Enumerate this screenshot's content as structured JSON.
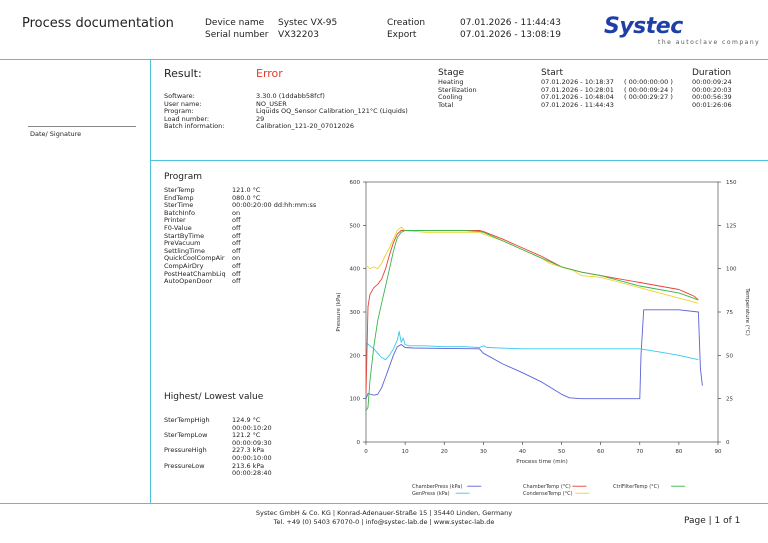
{
  "header": {
    "title": "Process documentation",
    "device_name_label": "Device name",
    "device_name": "Systec VX-95",
    "serial_label": "Serial number",
    "serial": "VX32203",
    "creation_label": "Creation",
    "creation": "07.01.2026 - 11:44:43",
    "export_label": "Export",
    "export": "07.01.2026 - 13:08:19",
    "logo_word": "Systec",
    "logo_sub": "the autoclave company"
  },
  "sidebar": {
    "date_signature": "Date/ Signature"
  },
  "result": {
    "label": "Result:",
    "value": "Error",
    "error_color": "#e33b2e",
    "fields": [
      {
        "k": "Software:",
        "v": "3.30.0 (1ddabb58fcf)"
      },
      {
        "k": "User name:",
        "v": "NO_USER"
      },
      {
        "k": "Program:",
        "v": "Liquids OQ_Sensor Calibration_121°C (Liquids)"
      },
      {
        "k": "Load number:",
        "v": "29"
      },
      {
        "k": "Batch information:",
        "v": "Calibration_121-20_07012026"
      }
    ]
  },
  "stages": {
    "stage_label": "Stage",
    "start_label": "Start",
    "duration_label": "Duration",
    "rows": [
      {
        "stage": "Heating",
        "start": "07.01.2026 - 10:18:37",
        "offset": "( 00:00:00:00 )",
        "duration": "00:00:09:24"
      },
      {
        "stage": "Sterilization",
        "start": "07.01.2026 - 10:28:01",
        "offset": "( 00:00:09:24 )",
        "duration": "00:00:20:03"
      },
      {
        "stage": "Cooling",
        "start": "07.01.2026 - 10:48:04",
        "offset": "( 00:00:29:27 )",
        "duration": "00:00:56:39"
      },
      {
        "stage": "Total",
        "start": "07.01.2026 - 11:44:43",
        "offset": "",
        "duration": "00:01:26:06"
      }
    ]
  },
  "program": {
    "title": "Program",
    "params": [
      {
        "k": "SterTemp",
        "v": "121.0 °C"
      },
      {
        "k": "EndTemp",
        "v": "080.0 °C"
      },
      {
        "k": "SterTime",
        "v": "00:00:20:00 dd:hh:mm:ss"
      },
      {
        "k": "BatchInfo",
        "v": "on"
      },
      {
        "k": "Printer",
        "v": "off"
      },
      {
        "k": "F0-Value",
        "v": "off"
      },
      {
        "k": "StartByTime",
        "v": "off"
      },
      {
        "k": "PreVacuum",
        "v": "off"
      },
      {
        "k": "SettlingTime",
        "v": "off"
      },
      {
        "k": "QuickCoolCompAir",
        "v": "on"
      },
      {
        "k": "CompAirDry",
        "v": "off"
      },
      {
        "k": "PostHeatChambLiq",
        "v": "off"
      },
      {
        "k": "AutoOpenDoor",
        "v": "off"
      }
    ]
  },
  "extremes": {
    "title": "Highest/ Lowest value",
    "items": [
      {
        "k": "SterTempHigh",
        "v": "124.9 °C",
        "t": "00:00:10:20"
      },
      {
        "k": "SterTempLow",
        "v": "121.2 °C",
        "t": "00:00:09:30"
      },
      {
        "k": "PressureHigh",
        "v": "227.3 kPa",
        "t": "00:00:10:00"
      },
      {
        "k": "PressureLow",
        "v": "213.6 kPa",
        "t": "00:00:28:40"
      }
    ]
  },
  "footer": {
    "line1": "Systec GmbH & Co. KG | Konrad-Adenauer-Straße 15 | 35440 Linden, Germany",
    "line2": "Tel. +49 (0) 5403 67070-0 | info@systec-lab.de | www.systec-lab.de",
    "page": "Page | 1 of 1"
  },
  "chart_data": {
    "type": "line",
    "xlabel": "Process time (min)",
    "ylabel_left": "Pressure (kPa)",
    "ylabel_right": "Temperature (°C)",
    "xlim": [
      0,
      90
    ],
    "ylim_left": [
      0,
      600
    ],
    "ylim_right": [
      0,
      150
    ],
    "x_ticks": [
      0,
      10,
      20,
      30,
      40,
      50,
      60,
      70,
      80,
      90
    ],
    "y_ticks_left": [
      0,
      100,
      200,
      300,
      400,
      500,
      600
    ],
    "y_ticks_right": [
      0,
      25,
      50,
      75,
      100,
      125,
      150
    ],
    "grid": false,
    "legend_position": "bottom",
    "series": [
      {
        "name": "ChamberPress (kPa)",
        "axis": "left",
        "color": "#5b63d6",
        "x": [
          0,
          0.5,
          2,
          3,
          4,
          5,
          6,
          7,
          8,
          9,
          10,
          12,
          20,
          29,
          30,
          35,
          40,
          45,
          50,
          52,
          55,
          60,
          65,
          70,
          70.3,
          71,
          80,
          85,
          85.5,
          86
        ],
        "y": [
          100,
          112,
          108,
          110,
          125,
          150,
          175,
          200,
          220,
          225,
          218,
          217,
          216,
          215,
          205,
          180,
          160,
          138,
          110,
          102,
          100,
          100,
          100,
          100,
          200,
          305,
          305,
          300,
          170,
          130
        ]
      },
      {
        "name": "GenPress (kPa)",
        "axis": "left",
        "color": "#35c9f0",
        "x": [
          0,
          1,
          2,
          3,
          4,
          5,
          6,
          7,
          8,
          8.5,
          9,
          9.5,
          10,
          11,
          15,
          20,
          25,
          29,
          30,
          31,
          40,
          50,
          60,
          70,
          75,
          80,
          85
        ],
        "y": [
          230,
          222,
          215,
          205,
          195,
          190,
          200,
          215,
          235,
          255,
          230,
          240,
          225,
          222,
          222,
          220,
          220,
          218,
          222,
          218,
          215,
          215,
          215,
          215,
          208,
          200,
          190
        ]
      },
      {
        "name": "ChamberTemp (°C)",
        "axis": "right",
        "color": "#e8403a",
        "x": [
          0,
          0.5,
          1,
          2,
          3,
          4,
          5,
          6,
          7,
          8,
          9,
          10,
          15,
          20,
          25,
          29,
          30,
          35,
          40,
          45,
          50,
          55,
          60,
          65,
          70,
          75,
          80,
          82,
          84,
          85
        ],
        "y": [
          28,
          78,
          85,
          89,
          91,
          94,
          100,
          108,
          115,
          120,
          122,
          122,
          122,
          122,
          122,
          122,
          121.5,
          117,
          112,
          107,
          101,
          98,
          96,
          94,
          92,
          90,
          88,
          86,
          84,
          82
        ]
      },
      {
        "name": "CondenseTemp (°C)",
        "axis": "right",
        "color": "#f2d22a",
        "x": [
          0,
          1,
          2,
          3,
          4,
          5,
          6,
          7,
          8,
          9,
          10,
          15,
          20,
          25,
          29,
          30,
          35,
          40,
          45,
          47,
          50,
          53,
          55,
          60,
          65,
          70,
          75,
          80,
          85
        ],
        "y": [
          102,
          100,
          101,
          100,
          103,
          108,
          112,
          117,
          122,
          124,
          122,
          121,
          121,
          121,
          121,
          120,
          116,
          111,
          106,
          103,
          101,
          99,
          96,
          95,
          92,
          89,
          86,
          83,
          80
        ]
      },
      {
        "name": "CtrlFilterTemp (°C)",
        "axis": "right",
        "color": "#3cb54a",
        "x": [
          0,
          0.5,
          1,
          2,
          3,
          4,
          5,
          6,
          7,
          8,
          9,
          10,
          15,
          20,
          25,
          29,
          30,
          35,
          40,
          45,
          50,
          55,
          60,
          65,
          70,
          75,
          80,
          85
        ],
        "y": [
          18,
          20,
          35,
          55,
          70,
          80,
          90,
          100,
          110,
          118,
          121,
          122,
          122,
          122,
          122,
          121.5,
          121,
          116,
          111,
          106,
          101,
          98,
          96,
          93,
          90,
          88,
          86,
          82
        ]
      }
    ]
  }
}
